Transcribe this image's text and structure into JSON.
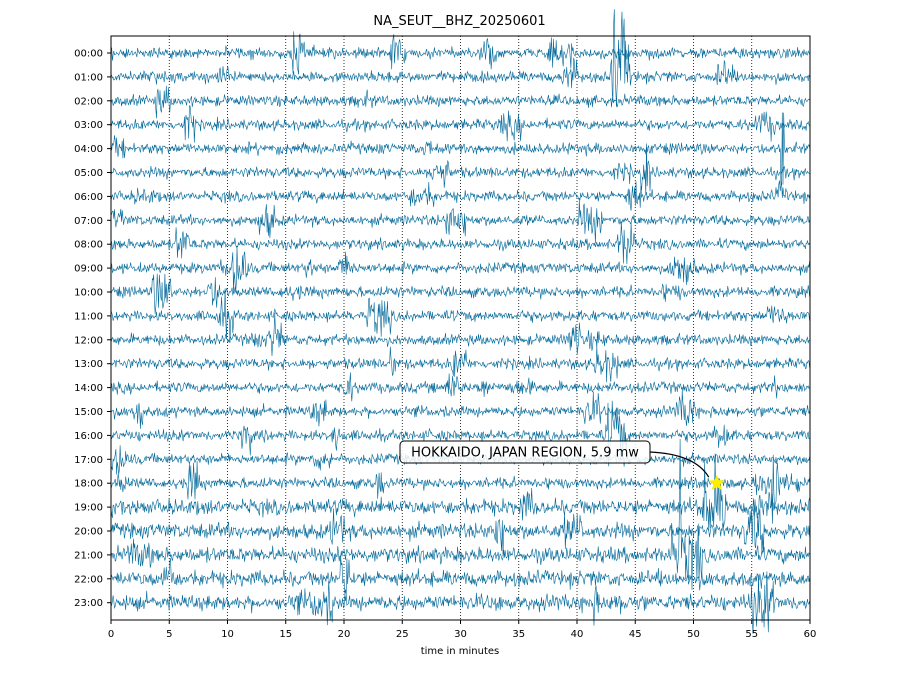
{
  "chart_data": {
    "type": "line",
    "title": "NA_SEUT__BHZ_20250601",
    "xlabel": "time in minutes",
    "ylabel": "",
    "xlim": [
      0,
      60
    ],
    "x_ticks": [
      0,
      5,
      10,
      15,
      20,
      25,
      30,
      35,
      40,
      45,
      50,
      55,
      60
    ],
    "y_labels": [
      "00:00",
      "01:00",
      "02:00",
      "03:00",
      "04:00",
      "05:00",
      "06:00",
      "07:00",
      "08:00",
      "09:00",
      "10:00",
      "11:00",
      "12:00",
      "13:00",
      "14:00",
      "15:00",
      "16:00",
      "17:00",
      "18:00",
      "19:00",
      "20:00",
      "21:00",
      "22:00",
      "23:00"
    ],
    "grid": "vertical dotted",
    "trace_color": "#00689a",
    "events": [
      {
        "text": "HOKKAIDO, JAPAN REGION, 5.9 mw",
        "hour": "18:00",
        "minute": 52,
        "marker": "star",
        "marker_color": "#ffee00"
      }
    ]
  }
}
